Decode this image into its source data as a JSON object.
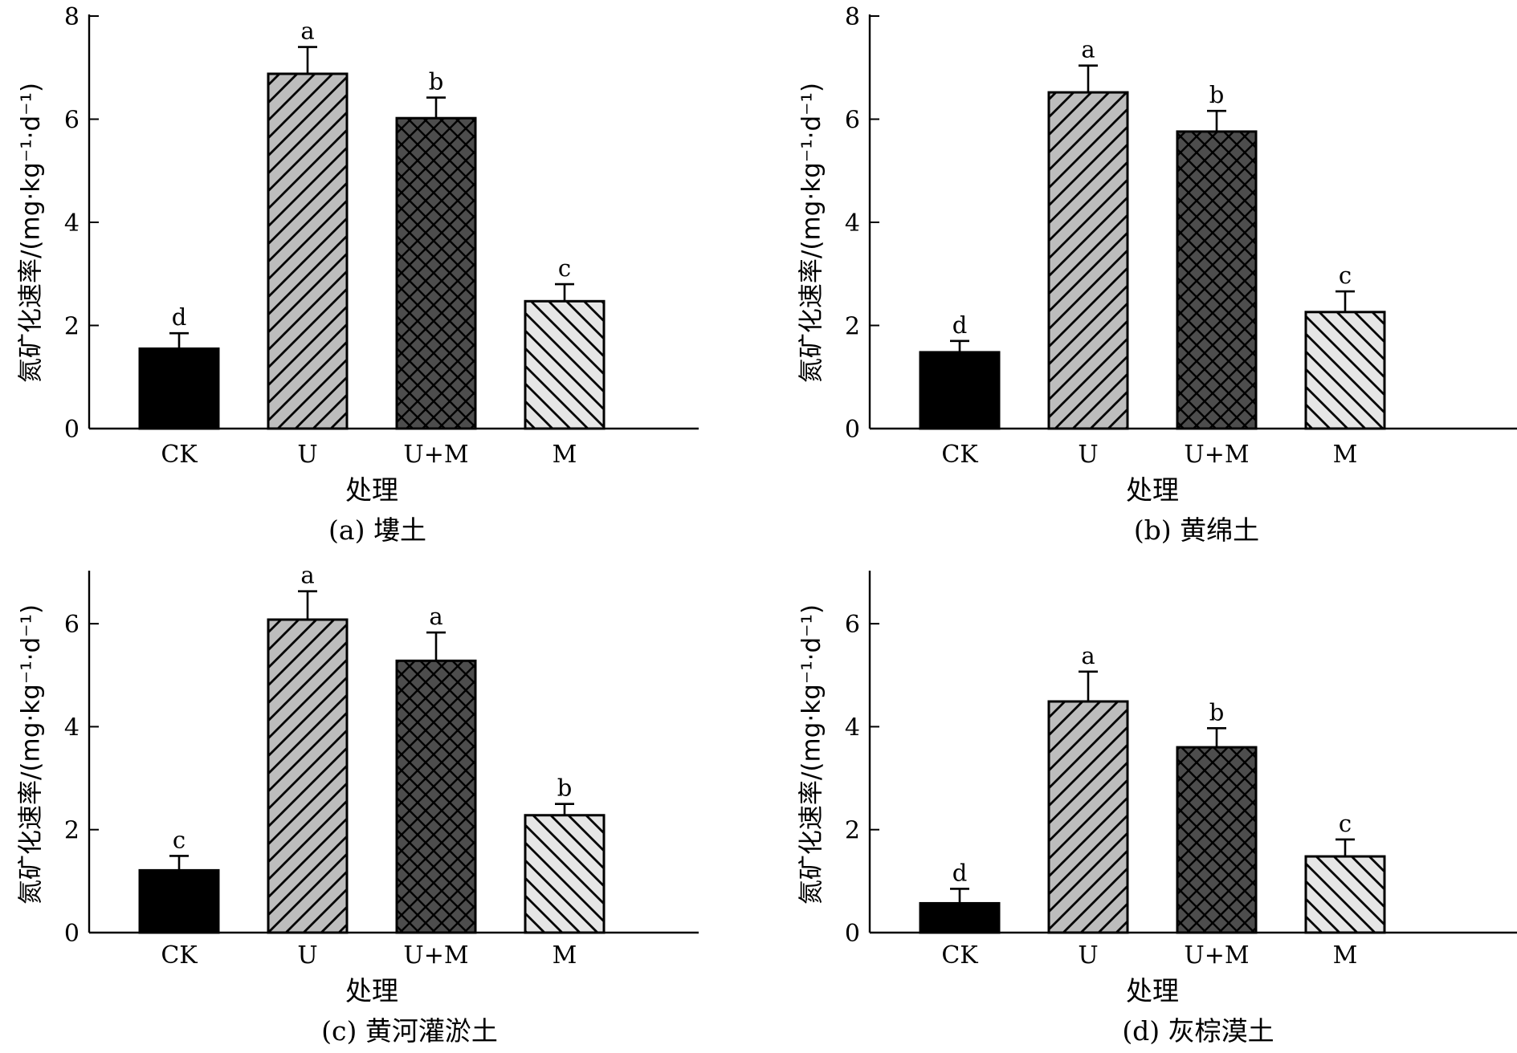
{
  "chart_data": [
    {
      "type": "bar",
      "caption": "(a) 塿土",
      "xlabel": "处理",
      "ylabel": "氮矿化速率/(mg·kg⁻¹·d⁻¹)",
      "categories": [
        "CK",
        "U",
        "U+M",
        "M"
      ],
      "values": [
        1.55,
        6.88,
        6.02,
        2.47
      ],
      "errors": [
        0.3,
        0.52,
        0.4,
        0.33
      ],
      "significance": [
        "d",
        "a",
        "b",
        "c"
      ],
      "ylim": [
        0,
        8
      ],
      "yticks": [
        "0",
        "2",
        "4",
        "6",
        "8"
      ]
    },
    {
      "type": "bar",
      "caption": "(b) 黄绵土",
      "xlabel": "处理",
      "ylabel": "氮矿化速率/(mg·kg⁻¹·d⁻¹)",
      "categories": [
        "CK",
        "U",
        "U+M",
        "M"
      ],
      "values": [
        1.48,
        6.52,
        5.76,
        2.26
      ],
      "errors": [
        0.22,
        0.52,
        0.4,
        0.4
      ],
      "significance": [
        "d",
        "a",
        "b",
        "c"
      ],
      "ylim": [
        0,
        8
      ],
      "yticks": [
        "0",
        "2",
        "4",
        "6",
        "8"
      ]
    },
    {
      "type": "bar",
      "caption": "(c) 黄河灌淤土",
      "xlabel": "处理",
      "ylabel": "氮矿化速率/(mg·kg⁻¹·d⁻¹)",
      "categories": [
        "CK",
        "U",
        "U+M",
        "M"
      ],
      "values": [
        1.21,
        6.08,
        5.28,
        2.28
      ],
      "errors": [
        0.28,
        0.55,
        0.55,
        0.22
      ],
      "significance": [
        "c",
        "a",
        "a",
        "b"
      ],
      "ylim": [
        0,
        7
      ],
      "yticks": [
        "0",
        "2",
        "4",
        "6"
      ]
    },
    {
      "type": "bar",
      "caption": "(d) 灰棕漠土",
      "xlabel": "处理",
      "ylabel": "氮矿化速率/(mg·kg⁻¹·d⁻¹)",
      "categories": [
        "CK",
        "U",
        "U+M",
        "M"
      ],
      "values": [
        0.57,
        4.49,
        3.6,
        1.48
      ],
      "errors": [
        0.28,
        0.58,
        0.37,
        0.33
      ],
      "significance": [
        "d",
        "a",
        "b",
        "c"
      ],
      "ylim": [
        0,
        7
      ],
      "yticks": [
        "0",
        "2",
        "4",
        "6"
      ]
    }
  ],
  "styles": {
    "bar_fills": [
      "#000000",
      "#bdbdbd",
      "#4d4d4d",
      "#e6e6e6"
    ],
    "bar_patterns": [
      "solid",
      "diagonal-forward",
      "crosshatch",
      "diagonal-backward"
    ],
    "axis_color": "#000000"
  }
}
